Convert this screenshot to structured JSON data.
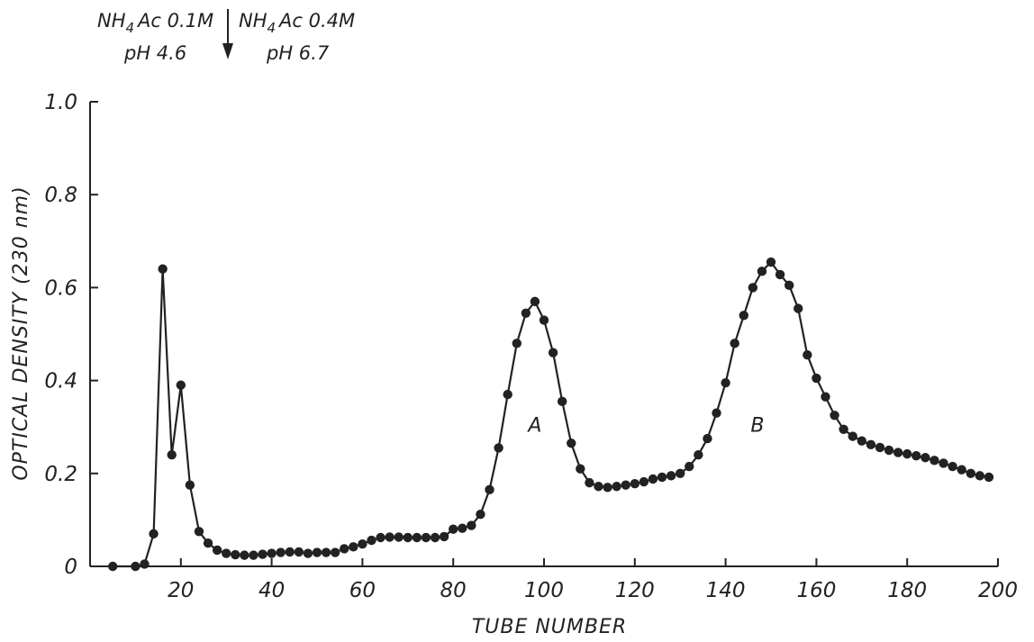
{
  "chart_data": {
    "type": "line",
    "xlabel": "TUBE NUMBER",
    "ylabel": "OPTICAL DENSITY (230 nm)",
    "xlim": [
      0,
      200
    ],
    "ylim": [
      0,
      1.0
    ],
    "xticks": [
      20,
      40,
      60,
      80,
      100,
      120,
      140,
      160,
      180,
      200
    ],
    "yticks": [
      {
        "value": 0,
        "label": "0"
      },
      {
        "value": 0.2,
        "label": "0.2"
      },
      {
        "value": 0.4,
        "label": "0.4"
      },
      {
        "value": 0.6,
        "label": "0.6"
      },
      {
        "value": 0.8,
        "label": "0.8"
      },
      {
        "value": 1.0,
        "label": "1.0"
      }
    ],
    "grid": false,
    "series": [
      {
        "color": "#222222",
        "marker": "filled-circle",
        "x": [
          5,
          10,
          12,
          14,
          16,
          18,
          20,
          22,
          24,
          26,
          28,
          30,
          32,
          34,
          36,
          38,
          40,
          42,
          44,
          46,
          48,
          50,
          52,
          54,
          56,
          58,
          60,
          62,
          64,
          66,
          68,
          70,
          72,
          74,
          76,
          78,
          80,
          82,
          84,
          86,
          88,
          90,
          92,
          94,
          96,
          98,
          100,
          102,
          104,
          106,
          108,
          110,
          112,
          114,
          116,
          118,
          120,
          122,
          124,
          126,
          128,
          130,
          132,
          134,
          136,
          138,
          140,
          142,
          144,
          146,
          148,
          150,
          152,
          154,
          156,
          158,
          160,
          162,
          164,
          166,
          168,
          170,
          172,
          174,
          176,
          178,
          180,
          182,
          184,
          186,
          188,
          190,
          192,
          194,
          196,
          198
        ],
        "y": [
          0.0,
          0.0,
          0.005,
          0.07,
          0.64,
          0.24,
          0.39,
          0.175,
          0.075,
          0.05,
          0.035,
          0.028,
          0.025,
          0.024,
          0.024,
          0.026,
          0.028,
          0.03,
          0.031,
          0.031,
          0.028,
          0.03,
          0.03,
          0.03,
          0.038,
          0.042,
          0.048,
          0.056,
          0.062,
          0.063,
          0.063,
          0.062,
          0.062,
          0.062,
          0.062,
          0.064,
          0.08,
          0.082,
          0.088,
          0.112,
          0.165,
          0.255,
          0.37,
          0.48,
          0.545,
          0.57,
          0.53,
          0.46,
          0.355,
          0.265,
          0.21,
          0.18,
          0.172,
          0.17,
          0.172,
          0.175,
          0.178,
          0.182,
          0.188,
          0.192,
          0.195,
          0.2,
          0.215,
          0.24,
          0.275,
          0.33,
          0.395,
          0.48,
          0.54,
          0.6,
          0.635,
          0.655,
          0.628,
          0.605,
          0.555,
          0.455,
          0.405,
          0.365,
          0.325,
          0.295,
          0.28,
          0.27,
          0.262,
          0.256,
          0.25,
          0.245,
          0.242,
          0.238,
          0.234,
          0.228,
          0.222,
          0.215,
          0.208,
          0.2,
          0.195,
          0.192
        ]
      }
    ],
    "annotations": [
      {
        "text": "A",
        "x": 98,
        "y": 0.29
      },
      {
        "text": "B",
        "x": 147,
        "y": 0.29
      }
    ],
    "buffer_change": {
      "at_x": 30,
      "left": {
        "line1_main": "NH",
        "line1_sub": "4",
        "line1_rest": "Ac  0.1M",
        "line2": "pH 4.6"
      },
      "right": {
        "line1_main": "NH",
        "line1_sub": "4",
        "line1_rest": "Ac  0.4M",
        "line2": "pH 6.7"
      }
    }
  }
}
